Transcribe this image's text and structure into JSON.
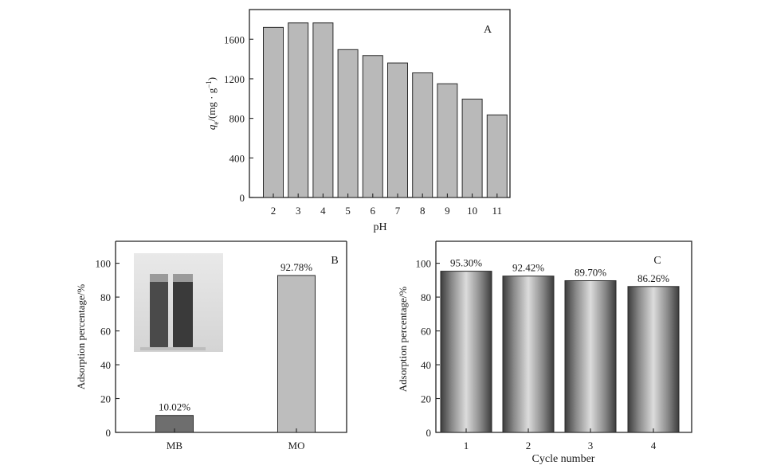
{
  "chart_data": [
    {
      "panel": "A",
      "type": "bar",
      "categories": [
        "2",
        "3",
        "4",
        "5",
        "6",
        "7",
        "8",
        "9",
        "10",
        "11"
      ],
      "values": [
        1720,
        1765,
        1765,
        1495,
        1435,
        1360,
        1260,
        1150,
        995,
        835
      ],
      "xlabel": "pH",
      "ylabel": {
        "main": "q",
        "sub": "e",
        "unit": "/(mg · g",
        "sup": "−1",
        "close": ")"
      },
      "ylim": [
        0,
        1900
      ],
      "yticks": [
        0,
        400,
        800,
        1200,
        1600
      ],
      "bar_color": "#b9b9b9",
      "grid": false
    },
    {
      "panel": "B",
      "type": "bar",
      "categories": [
        "MB",
        "MO"
      ],
      "values": [
        10.02,
        92.78
      ],
      "data_labels": [
        "10.02%",
        "92.78%"
      ],
      "bar_colors": [
        "#6e6e6e",
        "#bdbdbd"
      ],
      "xlabel": "",
      "ylabel": "Adsorption percentage/%",
      "ylim": [
        0,
        113
      ],
      "yticks": [
        0,
        20,
        40,
        60,
        80,
        100
      ],
      "inset": "photo of two test tubes",
      "grid": false
    },
    {
      "panel": "C",
      "type": "bar",
      "categories": [
        "1",
        "2",
        "3",
        "4"
      ],
      "values": [
        95.3,
        92.42,
        89.7,
        86.26
      ],
      "data_labels": [
        "95.30%",
        "92.42%",
        "89.70%",
        "86.26%"
      ],
      "xlabel": "Cycle number",
      "ylabel": "Adsorption percentage/%",
      "ylim": [
        0,
        113
      ],
      "yticks": [
        0,
        20,
        40,
        60,
        80,
        100
      ],
      "bar_style": "gray cylinder gradient",
      "grid": false
    }
  ]
}
